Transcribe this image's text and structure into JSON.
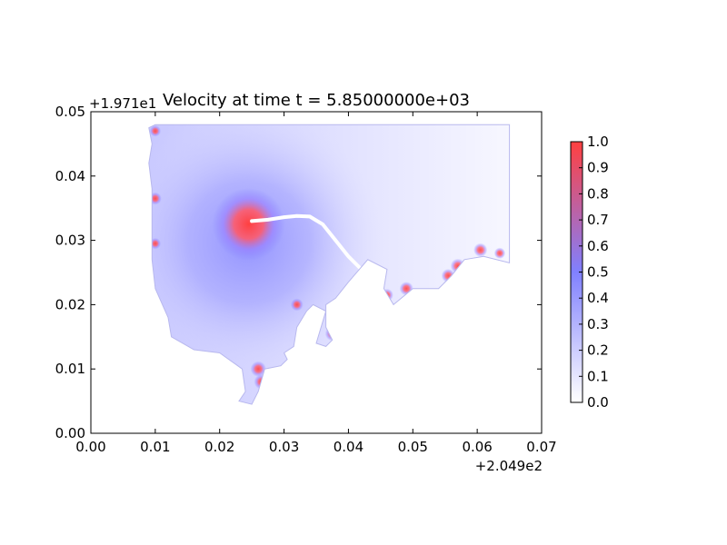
{
  "chart_data": {
    "type": "heatmap",
    "title": "Velocity at time t = 5.85000000e+03",
    "xlabel": "",
    "ylabel": "",
    "x_offset_label": "+2.049e2",
    "y_offset_label": "+1.971e1",
    "xlim": [
      0.0,
      0.07
    ],
    "ylim": [
      0.0,
      0.05
    ],
    "x_ticks": [
      "0.00",
      "0.01",
      "0.02",
      "0.03",
      "0.04",
      "0.05",
      "0.06",
      "0.07"
    ],
    "y_ticks": [
      "0.00",
      "0.01",
      "0.02",
      "0.03",
      "0.04",
      "0.05"
    ],
    "colorbar": {
      "range": [
        0.0,
        1.0
      ],
      "ticks": [
        "0.0",
        "0.1",
        "0.2",
        "0.3",
        "0.4",
        "0.5",
        "0.6",
        "0.7",
        "0.8",
        "0.9",
        "1.0"
      ],
      "colors": [
        "#ffffff",
        "#8080ff",
        "#ff4040"
      ]
    },
    "grid": false,
    "domain_outline": [
      [
        0.01,
        0.048
      ],
      [
        0.065,
        0.048
      ],
      [
        0.065,
        0.0265
      ],
      [
        0.061,
        0.0275
      ],
      [
        0.058,
        0.027
      ],
      [
        0.056,
        0.0245
      ],
      [
        0.054,
        0.0225
      ],
      [
        0.05,
        0.0225
      ],
      [
        0.047,
        0.02
      ],
      [
        0.0455,
        0.0225
      ],
      [
        0.046,
        0.0255
      ],
      [
        0.043,
        0.027
      ],
      [
        0.04,
        0.0235
      ],
      [
        0.038,
        0.021
      ],
      [
        0.0365,
        0.02
      ],
      [
        0.0365,
        0.0165
      ],
      [
        0.0375,
        0.0145
      ],
      [
        0.0365,
        0.0135
      ],
      [
        0.035,
        0.014
      ],
      [
        0.0365,
        0.019
      ],
      [
        0.0345,
        0.02
      ],
      [
        0.0335,
        0.019
      ],
      [
        0.032,
        0.0165
      ],
      [
        0.0315,
        0.0135
      ],
      [
        0.03,
        0.0125
      ],
      [
        0.0305,
        0.0115
      ],
      [
        0.0295,
        0.0105
      ],
      [
        0.027,
        0.01
      ],
      [
        0.026,
        0.0065
      ],
      [
        0.025,
        0.0045
      ],
      [
        0.023,
        0.005
      ],
      [
        0.024,
        0.0065
      ],
      [
        0.0235,
        0.01
      ],
      [
        0.02,
        0.0125
      ],
      [
        0.016,
        0.013
      ],
      [
        0.0125,
        0.015
      ],
      [
        0.012,
        0.018
      ],
      [
        0.01,
        0.0225
      ],
      [
        0.0095,
        0.027
      ],
      [
        0.0095,
        0.031
      ],
      [
        0.0095,
        0.038
      ],
      [
        0.009,
        0.042
      ],
      [
        0.0095,
        0.045
      ],
      [
        0.009,
        0.0475
      ]
    ],
    "velocity_peak": {
      "x": 0.0245,
      "y": 0.0325,
      "value": 1.0
    },
    "high_velocity_regions": [
      {
        "x": 0.0245,
        "y": 0.0325,
        "value": 1.0
      },
      {
        "x": 0.026,
        "y": 0.01,
        "value": 0.95
      },
      {
        "x": 0.0265,
        "y": 0.008,
        "value": 0.9
      },
      {
        "x": 0.0375,
        "y": 0.0155,
        "value": 0.85
      },
      {
        "x": 0.032,
        "y": 0.02,
        "value": 0.7
      },
      {
        "x": 0.01,
        "y": 0.0365,
        "value": 0.7
      },
      {
        "x": 0.01,
        "y": 0.047,
        "value": 0.6
      },
      {
        "x": 0.01,
        "y": 0.0295,
        "value": 0.6
      },
      {
        "x": 0.046,
        "y": 0.0215,
        "value": 0.7
      },
      {
        "x": 0.049,
        "y": 0.0225,
        "value": 0.8
      },
      {
        "x": 0.0555,
        "y": 0.0245,
        "value": 0.8
      },
      {
        "x": 0.057,
        "y": 0.026,
        "value": 0.9
      },
      {
        "x": 0.0605,
        "y": 0.0285,
        "value": 0.8
      },
      {
        "x": 0.0635,
        "y": 0.028,
        "value": 0.6
      }
    ],
    "trajectory": [
      [
        0.025,
        0.033
      ],
      [
        0.0275,
        0.0332
      ],
      [
        0.03,
        0.0336
      ],
      [
        0.032,
        0.0338
      ],
      [
        0.034,
        0.0337
      ],
      [
        0.036,
        0.0325
      ],
      [
        0.038,
        0.03
      ],
      [
        0.04,
        0.0275
      ],
      [
        0.042,
        0.0255
      ]
    ]
  }
}
